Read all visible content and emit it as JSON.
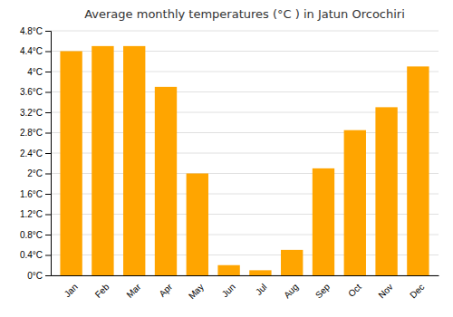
{
  "chart_data": {
    "type": "bar",
    "title": "Average monthly temperatures (°C ) in Jatun Orcochiri",
    "categories": [
      "Jan",
      "Feb",
      "Mar",
      "Apr",
      "May",
      "Jun",
      "Jul",
      "Aug",
      "Sep",
      "Oct",
      "Nov",
      "Dec"
    ],
    "values": [
      4.4,
      4.5,
      4.5,
      3.7,
      2.0,
      0.2,
      0.1,
      0.5,
      2.1,
      2.85,
      3.3,
      4.1
    ],
    "color": "#FFA500",
    "ylim": [
      0,
      4.8
    ],
    "yticks": [
      {
        "value": 0,
        "label": "0°C"
      },
      {
        "value": 0.4,
        "label": "0.4°C"
      },
      {
        "value": 0.8,
        "label": "0.8°C"
      },
      {
        "value": 1.2,
        "label": "1.2°C"
      },
      {
        "value": 1.6,
        "label": "1.6°C"
      },
      {
        "value": 2.0,
        "label": "2°C"
      },
      {
        "value": 2.4,
        "label": "2.4°C"
      },
      {
        "value": 2.8,
        "label": "2.8°C"
      },
      {
        "value": 3.2,
        "label": "3.2°C"
      },
      {
        "value": 3.6,
        "label": "3.6°C"
      },
      {
        "value": 4.0,
        "label": "4°C"
      },
      {
        "value": 4.4,
        "label": "4.4°C"
      },
      {
        "value": 4.8,
        "label": "4.8°C"
      }
    ],
    "grid": true
  }
}
